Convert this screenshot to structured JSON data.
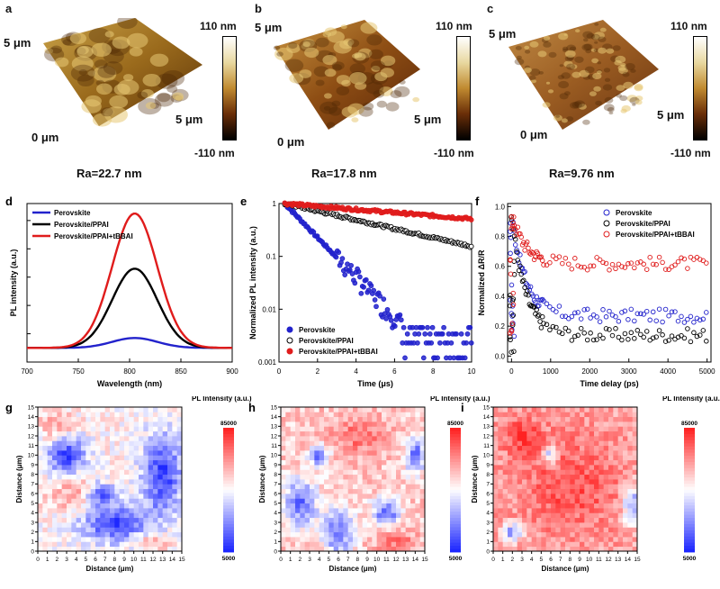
{
  "panels": {
    "a": {
      "label": "a",
      "y_mark": "5 μm",
      "x_mark": "5 μm",
      "origin": "0 μm",
      "cbar_max": "110 nm",
      "cbar_min": "-110 nm",
      "ra": "Ra=22.7 nm"
    },
    "b": {
      "label": "b",
      "y_mark": "5 μm",
      "x_mark": "5 μm",
      "origin": "0 μm",
      "cbar_max": "110 nm",
      "cbar_min": "-110 nm",
      "ra": "Ra=17.8 nm"
    },
    "c": {
      "label": "c",
      "y_mark": "5 μm",
      "x_mark": "5 μm",
      "origin": "0 μm",
      "cbar_max": "110 nm",
      "cbar_min": "-110 nm",
      "ra": "Ra=9.76 nm"
    },
    "g": {
      "label": "g"
    },
    "h": {
      "label": "h"
    },
    "i": {
      "label": "i"
    }
  },
  "colors": {
    "perovskite": "#2222cc",
    "ppai": "#000000",
    "tbbai": "#e01c1c"
  },
  "chart_data": [
    {
      "id": "d",
      "label": "d",
      "type": "line",
      "xlabel": "Wavelength (nm)",
      "ylabel": "PL intensity (a.u.)",
      "xlim": [
        700,
        900
      ],
      "xticks": [
        700,
        750,
        800,
        850,
        900
      ],
      "ylim": [
        0,
        1.12
      ],
      "legend_position": "top-left",
      "series": [
        {
          "name": "Perovskite",
          "peak": 805,
          "amplitude": 0.07,
          "sigma": 22
        },
        {
          "name": "Perovskite/PPAI",
          "peak": 805,
          "amplitude": 0.56,
          "sigma": 22
        },
        {
          "name": "Perovskite/PPAI+tBBAI",
          "peak": 805,
          "amplitude": 0.95,
          "sigma": 22
        }
      ]
    },
    {
      "id": "e",
      "label": "e",
      "type": "scatter",
      "yscale": "log",
      "xlabel": "Time (μs)",
      "ylabel": "Normalized PL intensity (a.u.)",
      "xlim": [
        0,
        10
      ],
      "xticks": [
        0,
        2,
        4,
        6,
        8,
        10
      ],
      "ylim": [
        0.001,
        1
      ],
      "yticks": [
        0.001,
        0.01,
        0.1,
        1
      ],
      "ytick_labels": [
        "0.001",
        "0.01",
        "0.1",
        "1"
      ],
      "legend_position": "bottom-left",
      "series": [
        {
          "name": "Perovskite",
          "tau": 1.15,
          "floor_min": 0.0012,
          "floor_max": 0.005
        },
        {
          "name": "Perovskite/PPAI",
          "tau": 5.2
        },
        {
          "name": "Perovskite/PPAI+tBBAI",
          "tau": 14.5
        }
      ]
    },
    {
      "id": "f",
      "label": "f",
      "type": "scatter",
      "xlabel": "Time delay (ps)",
      "ylabel": "Normalized ΔR/R",
      "xlim": [
        -100,
        5100
      ],
      "xticks": [
        0,
        1000,
        2000,
        3000,
        4000,
        5000
      ],
      "ylim": [
        -0.04,
        1.02
      ],
      "yticks": [
        0.0,
        0.2,
        0.4,
        0.6,
        0.8,
        1.0
      ],
      "ytick_labels": [
        "0.0",
        "0.2",
        "0.4",
        "0.6",
        "0.8",
        "1.0"
      ],
      "legend_position": "top-right",
      "series": [
        {
          "name": "Perovskite",
          "plateau": 0.27
        },
        {
          "name": "Perovskite/PPAI",
          "plateau": 0.14
        },
        {
          "name": "Perovskite/PPAI+tBBAI",
          "plateau": 0.62
        }
      ]
    },
    {
      "id": "maps",
      "type": "heatmap",
      "xlabel": "Distance (μm)",
      "ylabel": "Distance (μm)",
      "ticks": [
        0,
        1,
        2,
        3,
        4,
        5,
        6,
        7,
        8,
        9,
        10,
        11,
        12,
        13,
        14,
        15
      ],
      "colorbar_title": "PL Intensity (a.u.)",
      "colorbar_max": "85000",
      "colorbar_min": "5000",
      "maps": [
        {
          "panel": "g",
          "mean": 0.52,
          "blue_regions": [
            [
              8,
              3,
              3.5,
              2
            ],
            [
              13,
              8,
              2,
              4
            ],
            [
              3,
              10,
              2,
              2
            ],
            [
              6.5,
              6,
              1.5,
              1.2
            ]
          ],
          "red_regions": [
            [
              4,
              6,
              3,
              2
            ],
            [
              12,
              1,
              2,
              1
            ],
            [
              2,
              13,
              2,
              1.5
            ]
          ]
        },
        {
          "panel": "h",
          "mean": 0.62,
          "blue_regions": [
            [
              2,
              5,
              1.8,
              2.5
            ],
            [
              6,
              2,
              1.5,
              2.5
            ],
            [
              11,
              4,
              1.5,
              1.5
            ],
            [
              4,
              10,
              1,
              1.2
            ],
            [
              14,
              10,
              1,
              2
            ]
          ],
          "red_regions": [
            [
              8,
              12,
              3,
              2
            ],
            [
              12,
              1,
              2,
              1.5
            ]
          ]
        },
        {
          "panel": "i",
          "mean": 0.7,
          "blue_regions": [
            [
              14.5,
              5,
              1,
              2
            ],
            [
              6,
              10,
              0.8,
              1
            ],
            [
              2,
              2,
              1,
              1
            ]
          ],
          "red_regions": [
            [
              8,
              7,
              5,
              5
            ],
            [
              3,
              12,
              2,
              2
            ]
          ]
        }
      ]
    }
  ]
}
